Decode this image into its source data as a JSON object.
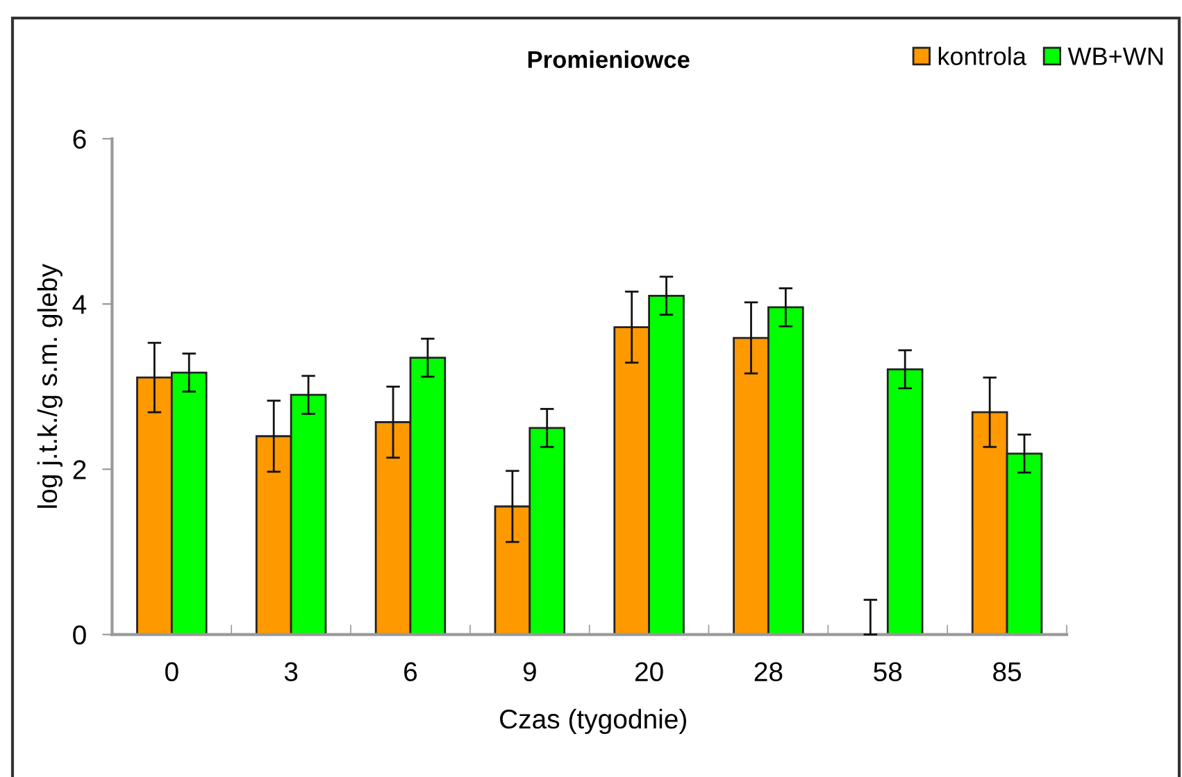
{
  "chart_data": {
    "type": "bar",
    "title": "Promieniowce",
    "xlabel": "Czas (tygodnie)",
    "ylabel": "log j.t.k./g s.m. gleby",
    "categories": [
      "0",
      "3",
      "6",
      "9",
      "20",
      "28",
      "58",
      "85"
    ],
    "series": [
      {
        "name": "kontrola",
        "color": "#ff9900",
        "values": [
          3.11,
          2.4,
          2.57,
          1.55,
          3.72,
          3.59,
          0,
          2.69
        ],
        "errors": [
          0.42,
          0.43,
          0.43,
          0.43,
          0.43,
          0.43,
          [
            0,
            0.42
          ],
          0.42
        ]
      },
      {
        "name": "WB+WN",
        "color": "#00ff00",
        "values": [
          3.17,
          2.9,
          3.35,
          2.5,
          4.1,
          3.96,
          3.21,
          2.19
        ],
        "errors": [
          0.23,
          0.23,
          0.23,
          0.23,
          0.23,
          0.23,
          0.23,
          0.23
        ]
      }
    ],
    "ylim": [
      0,
      6
    ],
    "yticks": [
      0,
      2,
      4,
      6
    ],
    "legend": "top right"
  }
}
